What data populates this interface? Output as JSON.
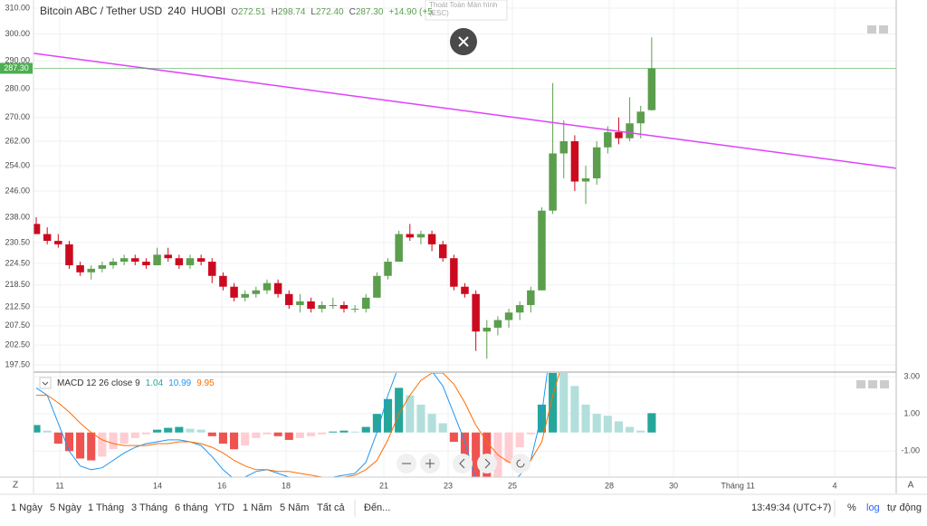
{
  "chart_data": {
    "type": "candlestick",
    "title": "Bitcoin ABC / Tether USD",
    "interval": "240",
    "exchange": "HUOBI",
    "header_values": [
      {
        "prefix": "O",
        "label": "272.51"
      },
      {
        "prefix": "H",
        "label": "298.74"
      },
      {
        "prefix": "L",
        "label": "272.40"
      },
      {
        "prefix": "C",
        "label": "287.30"
      }
    ],
    "change": "+14.90 (+5.",
    "up_color": "#5b9e4d",
    "down_color": "#cc0a1f",
    "log": true,
    "grid": true,
    "open": [
      236,
      233,
      231,
      230,
      224,
      222,
      223,
      224,
      225,
      226,
      225,
      224,
      227,
      226,
      224,
      226,
      225,
      221,
      218,
      215,
      216,
      217,
      219,
      216,
      213,
      214,
      212,
      213,
      213,
      212,
      212,
      215,
      221,
      225,
      233,
      232,
      233,
      230,
      226,
      218,
      216,
      206,
      207,
      209,
      211,
      213,
      217,
      240,
      258,
      262,
      249,
      250,
      260,
      265,
      263,
      268,
      272.51
    ],
    "high": [
      238,
      235,
      233,
      231,
      225,
      224,
      225,
      226,
      227,
      227,
      226,
      229,
      229,
      227,
      227,
      227,
      226,
      222,
      219,
      217,
      218,
      220,
      220,
      217,
      216,
      215,
      214,
      215,
      214,
      213,
      216,
      222,
      226,
      234,
      236,
      234,
      234,
      231,
      227,
      219,
      217,
      209,
      210,
      212,
      214,
      218,
      241,
      282,
      269,
      264,
      254,
      262,
      267,
      270,
      277,
      274,
      298.74
    ],
    "low": [
      233,
      230,
      229,
      223,
      221,
      220,
      222,
      223,
      224,
      224,
      223,
      224,
      225,
      223,
      223,
      224,
      219,
      217,
      214,
      214,
      215,
      216,
      215,
      212,
      211,
      211,
      211,
      212,
      211,
      211,
      211,
      215,
      220,
      225,
      231,
      230,
      228,
      225,
      217,
      215,
      201,
      199,
      205,
      207,
      209,
      211,
      217,
      239,
      250,
      246,
      242,
      248,
      258,
      261,
      262,
      263,
      272.4
    ],
    "close": [
      233,
      231,
      230,
      224,
      222,
      223,
      224,
      225,
      226,
      225,
      224,
      227,
      226,
      224,
      226,
      225,
      221,
      218,
      215,
      216,
      217,
      219,
      216,
      213,
      214,
      212,
      213,
      213,
      212,
      212,
      215,
      221,
      225,
      233,
      232,
      233,
      230,
      226,
      218,
      216,
      206,
      207,
      209,
      211,
      213,
      217,
      240,
      258,
      262,
      249,
      250,
      260,
      265,
      263,
      268,
      272,
      287.3
    ],
    "ylim": [
      197.5,
      310
    ],
    "yticks": [
      {
        "value": 310,
        "label": "310.00"
      },
      {
        "value": 300,
        "label": "300.00"
      },
      {
        "value": 290,
        "label": "290.00"
      },
      {
        "value": 280,
        "label": "280.00"
      },
      {
        "value": 270,
        "label": "270.00"
      },
      {
        "value": 262,
        "label": "262.00"
      },
      {
        "value": 254,
        "label": "254.00"
      },
      {
        "value": 246,
        "label": "246.00"
      },
      {
        "value": 238,
        "label": "238.00"
      },
      {
        "value": 230.5,
        "label": "230.50"
      },
      {
        "value": 224.5,
        "label": "224.50"
      },
      {
        "value": 218.5,
        "label": "218.50"
      },
      {
        "value": 212.5,
        "label": "212.50"
      },
      {
        "value": 207.5,
        "label": "207.50"
      },
      {
        "value": 202.5,
        "label": "202.50"
      },
      {
        "value": 197.5,
        "label": "197.50"
      }
    ],
    "xlim": [
      -0.25,
      78.25
    ],
    "xticks": [
      {
        "value": 2.14,
        "label": "11"
      },
      {
        "value": 11.04,
        "label": "14"
      },
      {
        "value": 16.89,
        "label": "16"
      },
      {
        "value": 22.73,
        "label": "18"
      },
      {
        "value": 31.63,
        "label": "21"
      },
      {
        "value": 37.48,
        "label": "23"
      },
      {
        "value": 43.33,
        "label": "25"
      },
      {
        "value": 52.14,
        "label": "28"
      },
      {
        "value": 57.99,
        "label": "30"
      },
      {
        "value": 63.84,
        "label": "Tháng 11"
      },
      {
        "value": 72.65,
        "label": "4"
      }
    ],
    "trendline": {
      "color": "#e040fb",
      "points": [
        [
          -0.25,
          292.8
        ],
        [
          78.25,
          253.2
        ]
      ]
    },
    "price_line": {
      "value": 287.3,
      "label": "287.30",
      "color": "#4caf50"
    },
    "macd": {
      "title": "MACD 12 26 close 9",
      "histogram": [
        0.4,
        0.1,
        -0.6,
        -1.0,
        -1.4,
        -1.5,
        -1.3,
        -0.9,
        -0.6,
        -0.3,
        -0.1,
        0.15,
        0.25,
        0.3,
        0.2,
        0.15,
        -0.2,
        -0.6,
        -0.9,
        -0.7,
        -0.3,
        -0.1,
        -0.2,
        -0.4,
        -0.3,
        -0.2,
        -0.1,
        0.05,
        0.1,
        0.05,
        0.3,
        1.0,
        1.8,
        2.4,
        2.0,
        1.5,
        1.0,
        0.5,
        -0.5,
        -1.5,
        -2.8,
        -3.5,
        -2.5,
        -1.6,
        -0.8,
        -0.1,
        1.5,
        4.5,
        4.0,
        2.5,
        1.5,
        1.0,
        0.9,
        0.6,
        0.3,
        0.1,
        1.04
      ],
      "macd": [
        2.4,
        2.0,
        0.5,
        -1.0,
        -1.8,
        -2.0,
        -1.9,
        -1.5,
        -1.1,
        -0.8,
        -0.6,
        -0.5,
        -0.4,
        -0.4,
        -0.5,
        -0.7,
        -1.3,
        -2.0,
        -2.5,
        -2.4,
        -2.1,
        -2.0,
        -2.2,
        -2.4,
        -2.5,
        -2.5,
        -2.5,
        -2.4,
        -2.3,
        -2.2,
        -1.6,
        0.0,
        2.0,
        3.6,
        3.9,
        3.8,
        3.3,
        2.5,
        1.0,
        -0.5,
        -2.5,
        -3.4,
        -3.3,
        -2.9,
        -2.3,
        -1.5,
        1.0,
        5.5,
        8.0,
        9.0,
        9.2,
        9.5,
        10.0,
        10.2,
        10.3,
        10.4,
        10.99
      ],
      "signal": [
        2.0,
        2.0,
        1.6,
        1.1,
        0.5,
        0.0,
        -0.4,
        -0.6,
        -0.7,
        -0.7,
        -0.7,
        -0.6,
        -0.6,
        -0.5,
        -0.5,
        -0.6,
        -0.8,
        -1.1,
        -1.5,
        -1.8,
        -2.0,
        -2.0,
        -2.1,
        -2.1,
        -2.2,
        -2.3,
        -2.4,
        -2.4,
        -2.4,
        -2.3,
        -2.0,
        -1.5,
        -0.4,
        1.0,
        2.0,
        2.8,
        3.2,
        3.2,
        2.6,
        1.6,
        0.4,
        -0.5,
        -1.2,
        -1.6,
        -1.7,
        -1.5,
        -0.5,
        2.0,
        4.0,
        6.0,
        7.5,
        8.5,
        9.0,
        9.3,
        9.6,
        9.8,
        9.95
      ],
      "macd_color": "#2196f3",
      "signal_color": "#ff6d00",
      "hist_colors": {
        "up_grow": "#26a69a",
        "up_fall": "#b2dfdb",
        "down_grow": "#ef5350",
        "down_fall": "#ffcdd2"
      },
      "ylim": [
        -2.4,
        3.2
      ],
      "yticks": [
        {
          "value": 3,
          "label": "3.00"
        },
        {
          "value": 1,
          "label": "1.00"
        },
        {
          "value": -1,
          "label": "-1.00"
        }
      ]
    }
  },
  "tooltip": [
    "Thoát Toàn Màn hình",
    "(ESC)"
  ],
  "axis_buttons": [
    "Z",
    "A"
  ],
  "toolbar": {
    "ranges": [
      "1 Ngày",
      "5 Ngày",
      "1 Tháng",
      "3 Tháng",
      "6 tháng",
      "YTD",
      "1 Năm",
      "5 Năm",
      "Tất cả"
    ],
    "goto": "Đến...",
    "time": "13:49:34 (UTC+7)",
    "options": [
      "%",
      "log",
      "tự động"
    ]
  }
}
